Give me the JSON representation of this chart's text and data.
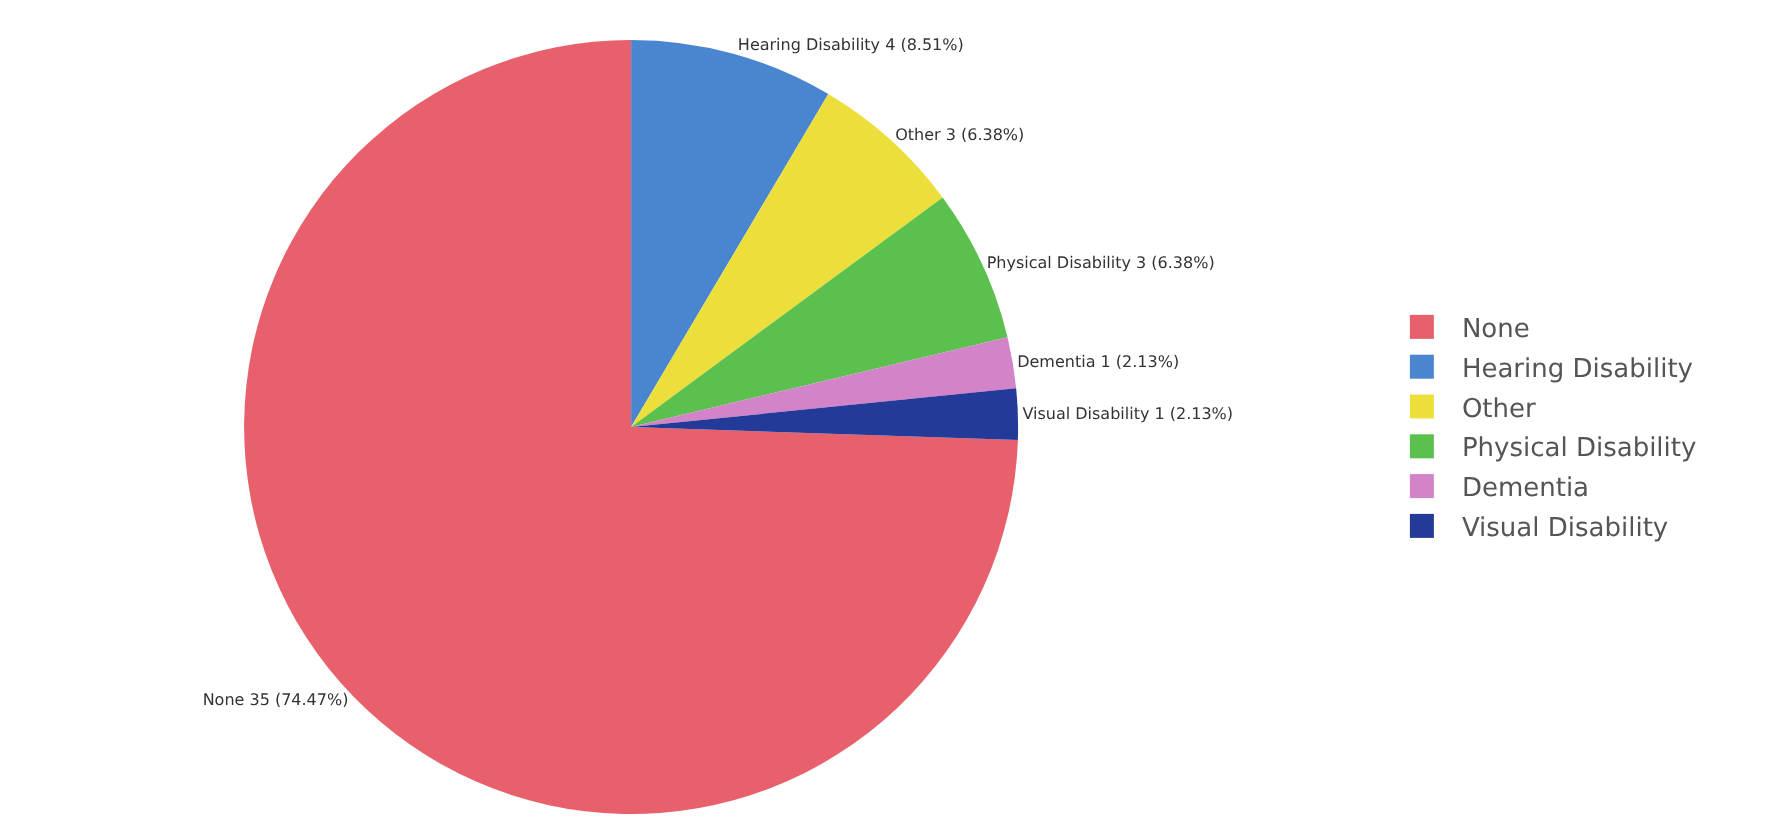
{
  "chart_data": {
    "type": "pie",
    "categories": [
      "None",
      "Hearing Disability",
      "Other",
      "Physical Disability",
      "Dementia",
      "Visual Disability"
    ],
    "values": [
      35,
      4,
      3,
      3,
      1,
      1
    ],
    "colors": [
      "#e8606b",
      "#4a86d0",
      "#ecdf3c",
      "#5cc04e",
      "#d383c7",
      "#243a99"
    ],
    "value_labels": [
      "None 35 (74.47%)",
      "Hearing Disability 4 (8.51%)",
      "Other 3 (6.38%)",
      "Physical Disability 3 (6.38%)",
      "Dementia 1 (2.13%)",
      "Visual Disability 1 (2.13%)"
    ],
    "legend": "right"
  }
}
